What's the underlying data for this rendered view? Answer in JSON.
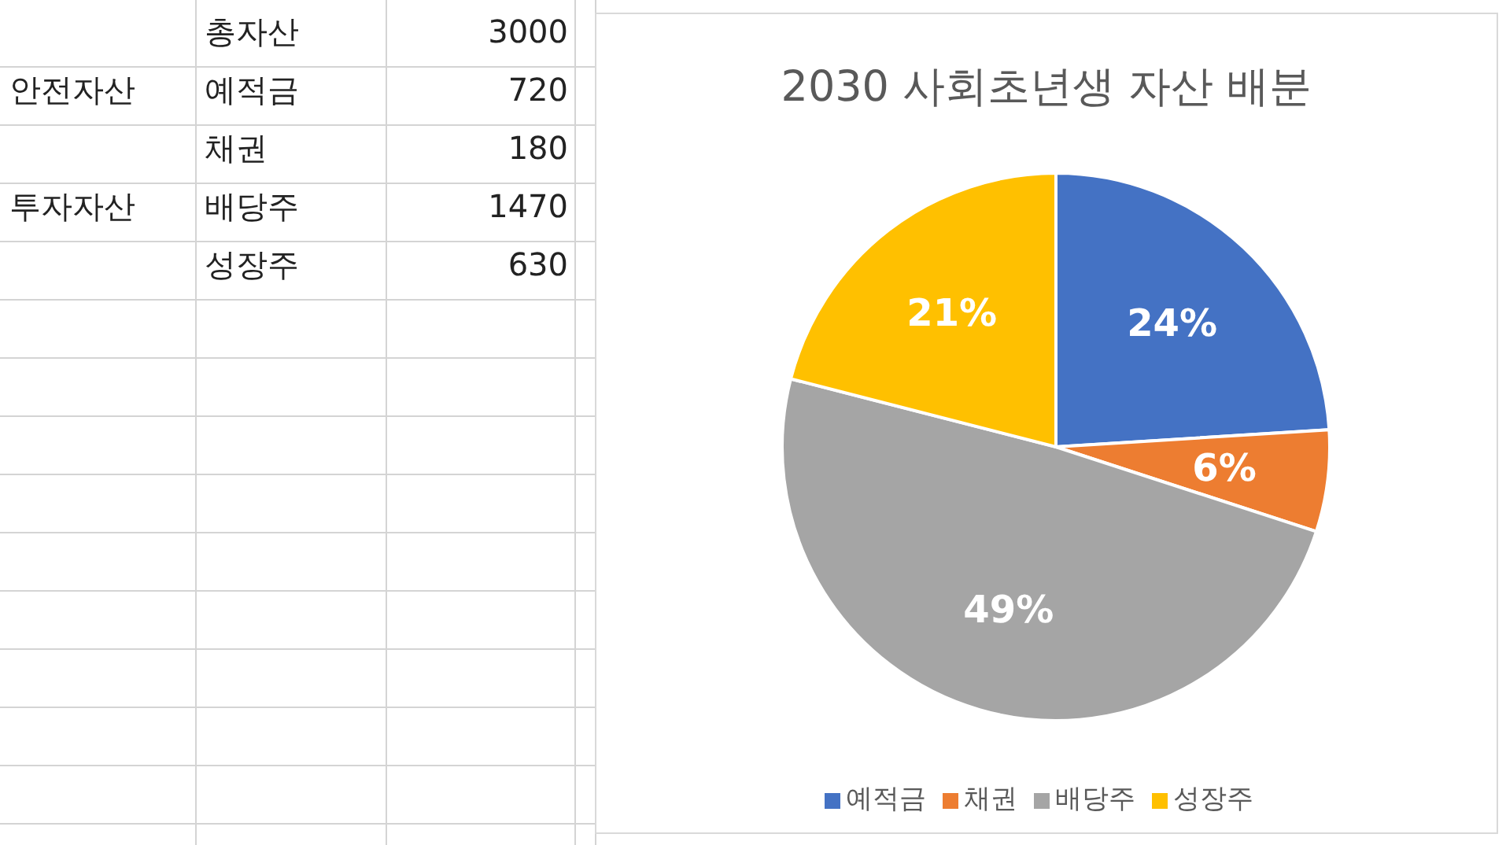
{
  "chart_data": {
    "type": "pie",
    "title": "2030 사회초년생 자산 배분",
    "categories": [
      "예적금",
      "채권",
      "배당주",
      "성장주"
    ],
    "values": [
      24,
      6,
      49,
      21
    ],
    "colors": [
      "#4472c4",
      "#ed7d31",
      "#a5a5a5",
      "#ffc000"
    ],
    "value_labels": [
      "24%",
      "6%",
      "49%",
      "21%"
    ],
    "legend": "bottom",
    "annotations": [
      "총자산",
      "3000",
      "안전자산",
      "720",
      "180",
      "투자자산",
      "1470",
      "630"
    ]
  }
}
